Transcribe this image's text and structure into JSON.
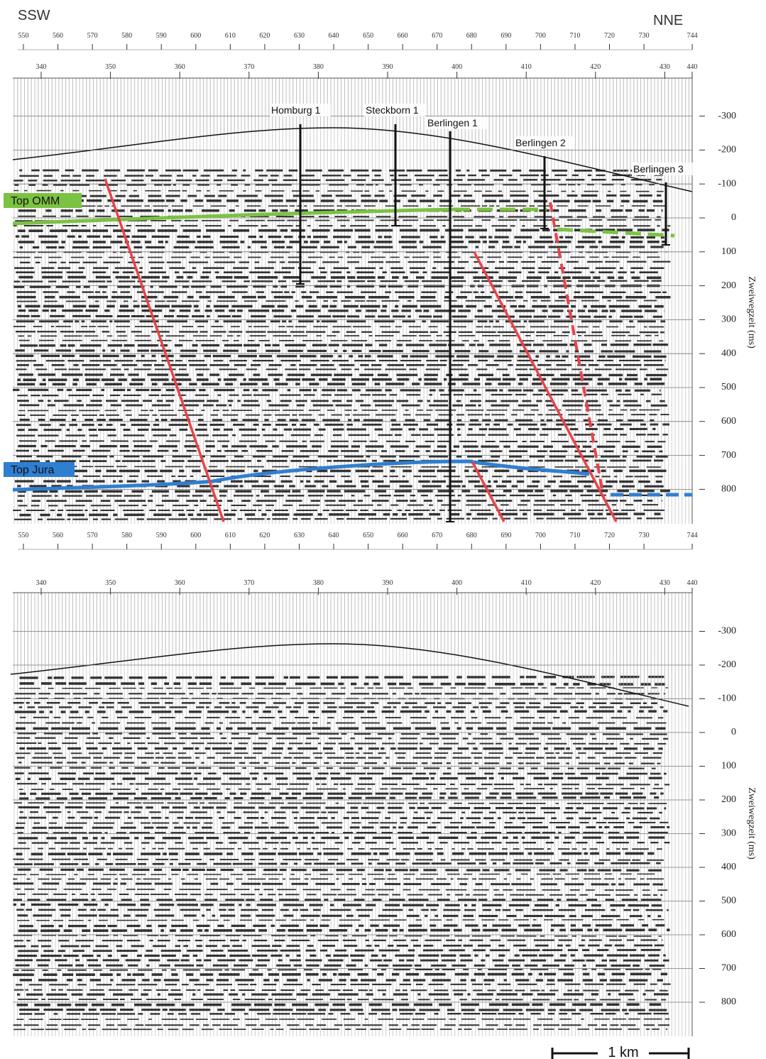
{
  "header": {
    "left": "SSW",
    "right": "NNE"
  },
  "axes": {
    "cdp_ticks": [
      550,
      560,
      570,
      580,
      590,
      600,
      610,
      620,
      630,
      640,
      650,
      660,
      670,
      680,
      690,
      700,
      710,
      720,
      730,
      744
    ],
    "station_ticks": [
      340,
      350,
      360,
      370,
      380,
      390,
      400,
      410,
      420,
      430,
      440
    ],
    "time_ticks": [
      -300,
      -200,
      -100,
      0,
      100,
      200,
      300,
      400,
      500,
      600,
      700,
      800
    ],
    "time_label": "Zweiwegzeit (ms)"
  },
  "wells": [
    {
      "label": "Homburg 1"
    },
    {
      "label": "Steckborn 1"
    },
    {
      "label": "Berlingen 1"
    },
    {
      "label": "Berlingen 2"
    },
    {
      "label": "Berlingen 3"
    }
  ],
  "horizons": [
    {
      "label": "Top OMM"
    },
    {
      "label": "Top Jura"
    }
  ],
  "scale_bar": "1 km"
}
